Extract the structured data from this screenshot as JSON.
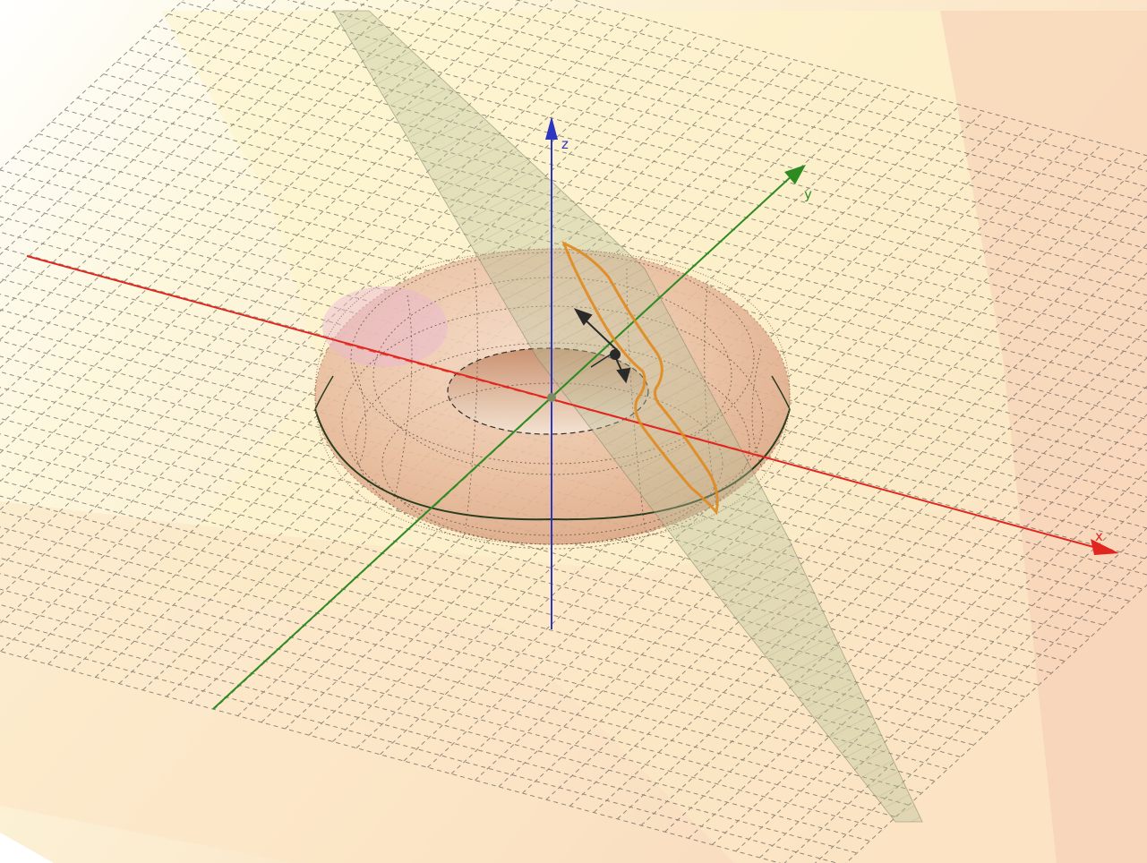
{
  "scene": {
    "axes": {
      "x": {
        "label": "x",
        "color": "#e0261e"
      },
      "y": {
        "label": "y",
        "color": "#2e8b22"
      },
      "z": {
        "label": "z",
        "color": "#2b35c0"
      }
    },
    "surfaces": {
      "torus_color": "#e7b899",
      "plane_color": "#a9b58c",
      "intersection_curve_color": "#e08a1e",
      "background_tint": "#fbe4c4"
    },
    "grid": {
      "visible": true,
      "style": "dashed"
    }
  }
}
